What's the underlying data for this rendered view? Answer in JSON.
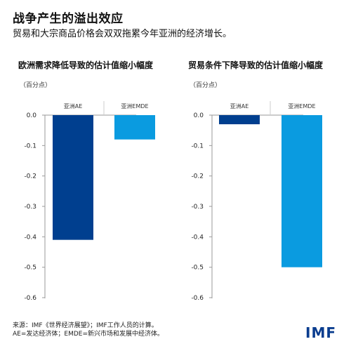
{
  "header": {
    "title": "战争产生的溢出效应",
    "subtitle": "贸易和大宗商品价格会双双拖累今年亚洲的经济增长。"
  },
  "colors": {
    "ae": "#003f8f",
    "emde": "#0a9be0",
    "axis": "#999999"
  },
  "chart_data": [
    {
      "type": "bar",
      "title": "欧洲需求降低导致的估计值缩小幅度",
      "unit": "（百分点）",
      "categories": [
        "亚洲AE",
        "亚洲EMDE"
      ],
      "values": [
        -0.41,
        -0.08
      ],
      "yticks": [
        "0.0",
        "-0.1",
        "-0.2",
        "-0.3",
        "-0.4",
        "-0.5",
        "-0.6"
      ],
      "ylim": [
        -0.6,
        0
      ],
      "grid": false
    },
    {
      "type": "bar",
      "title": "贸易条件下降导致的估计值缩小幅度",
      "unit": "（百分点）",
      "categories": [
        "亚洲AE",
        "亚洲EMDE"
      ],
      "values": [
        -0.03,
        -0.5
      ],
      "yticks": [
        "0.0",
        "-0.1",
        "-0.2",
        "-0.3",
        "-0.4",
        "-0.5",
        "-0.6"
      ],
      "ylim": [
        -0.6,
        0
      ],
      "grid": false
    }
  ],
  "footer": {
    "source_line1": "来源：IMF《世界经济展望》；IMF工作人员的计算。",
    "source_line2": "AE=发达经济体；EMDE=新兴市场和发展中经济体。",
    "logo": "IMF"
  }
}
